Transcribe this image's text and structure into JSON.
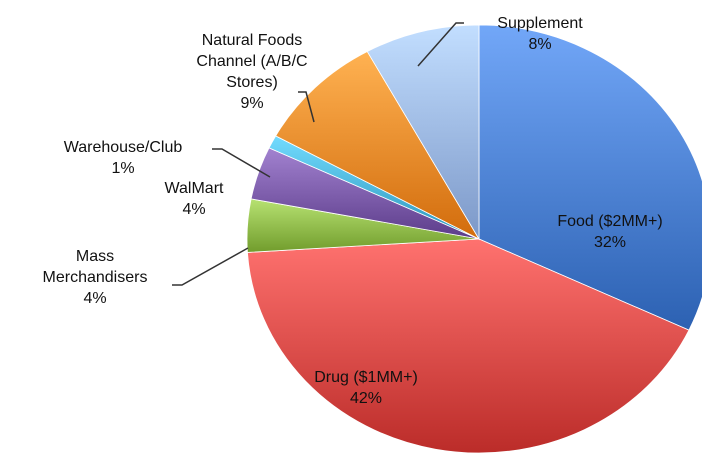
{
  "chart_data": {
    "type": "pie",
    "title": "",
    "legend": "none",
    "slices": [
      {
        "label_lines": [
          "Food ($2MM+)",
          "32%"
        ],
        "value": 32,
        "color": "#4a7fd0"
      },
      {
        "label_lines": [
          "Drug ($1MM+)",
          "42%"
        ],
        "value": 42,
        "color": "#d94a47"
      },
      {
        "label_lines": [
          "Mass",
          "Merchandisers",
          "4%"
        ],
        "value": 4,
        "color": "#8fba4a"
      },
      {
        "label_lines": [
          "WalMart",
          "4%"
        ],
        "value": 4,
        "color": "#7a5aa8"
      },
      {
        "label_lines": [
          "Warehouse/Club",
          "1%"
        ],
        "value": 1,
        "color": "#4ab3d8"
      },
      {
        "label_lines": [
          "Natural Foods",
          "Channel (A/B/C",
          "Stores)",
          "9%"
        ],
        "value": 9,
        "color": "#f08a2a"
      },
      {
        "label_lines": [
          "Supplement",
          "8%"
        ],
        "value": 8,
        "color": "#9ab6e6"
      }
    ]
  }
}
